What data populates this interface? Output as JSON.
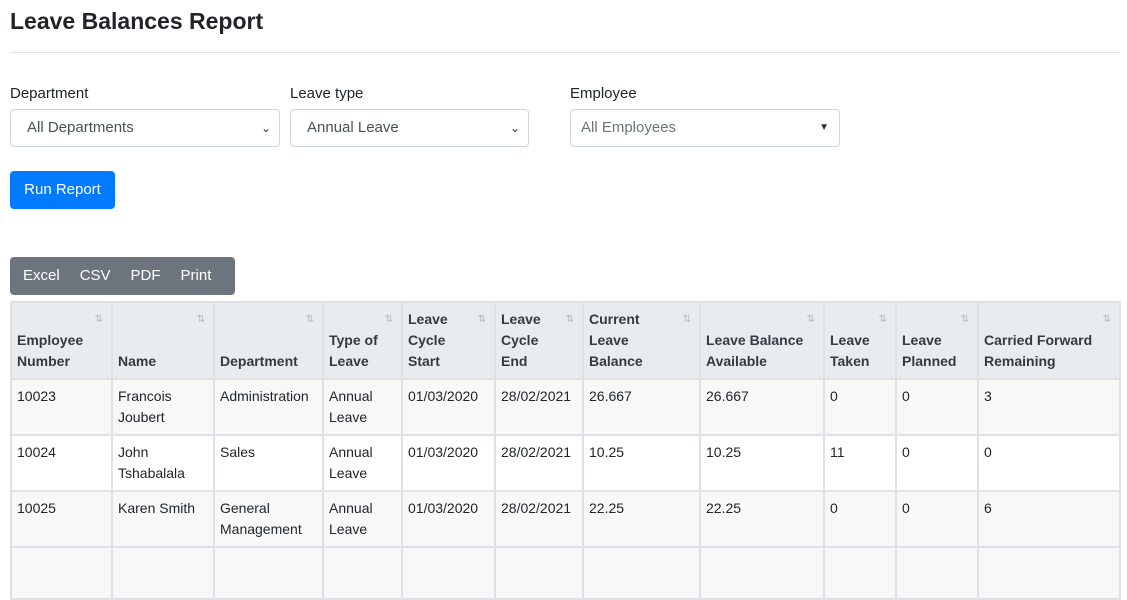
{
  "title": "Leave Balances Report",
  "filters": {
    "department": {
      "label": "Department",
      "value": "All Departments"
    },
    "leave_type": {
      "label": "Leave type",
      "value": "Annual Leave"
    },
    "employee": {
      "label": "Employee",
      "value": "All Employees"
    }
  },
  "run_label": "Run Report",
  "export": [
    "Excel",
    "CSV",
    "PDF",
    "Print"
  ],
  "table": {
    "headers": [
      "Employee Number",
      "Name",
      "Department",
      "Type of Leave",
      "Leave Cycle Start",
      "Leave Cycle End",
      "Current Leave Balance",
      "Leave Balance Available",
      "Leave Taken",
      "Leave Planned",
      "Carried Forward Remaining"
    ],
    "rows": [
      [
        "10023",
        "Francois Joubert",
        "Administration",
        "Annual Leave",
        "01/03/2020",
        "28/02/2021",
        "26.667",
        "26.667",
        "0",
        "0",
        "3"
      ],
      [
        "10024",
        "John Tshabalala",
        "Sales",
        "Annual Leave",
        "01/03/2020",
        "28/02/2021",
        "10.25",
        "10.25",
        "11",
        "0",
        "0"
      ],
      [
        "10025",
        "Karen Smith",
        "General Management",
        "Annual Leave",
        "01/03/2020",
        "28/02/2021",
        "22.25",
        "22.25",
        "0",
        "0",
        "6"
      ]
    ]
  }
}
